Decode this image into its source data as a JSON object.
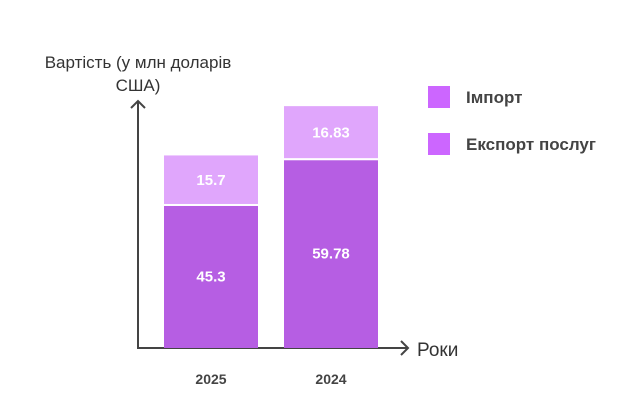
{
  "chart_data": {
    "type": "bar",
    "stacked": true,
    "categories": [
      "2025",
      "2024"
    ],
    "series": [
      {
        "name": "Експорт послуг",
        "values": [
          45.3,
          59.78
        ],
        "color": "#b65ee3"
      },
      {
        "name": "Імпорт",
        "values": [
          15.7,
          16.83
        ],
        "color": "#e0a6fc"
      }
    ],
    "legend": {
      "position": "right",
      "items": [
        {
          "label": "Імпорт",
          "color": "#cc66ff"
        },
        {
          "label": "Експорт послуг",
          "color": "#cc66ff"
        }
      ]
    },
    "ylabel_lines": [
      "Вартість (у млн доларів",
      "США)"
    ],
    "xlabel": "Роки",
    "grid": false,
    "data_labels": true
  }
}
